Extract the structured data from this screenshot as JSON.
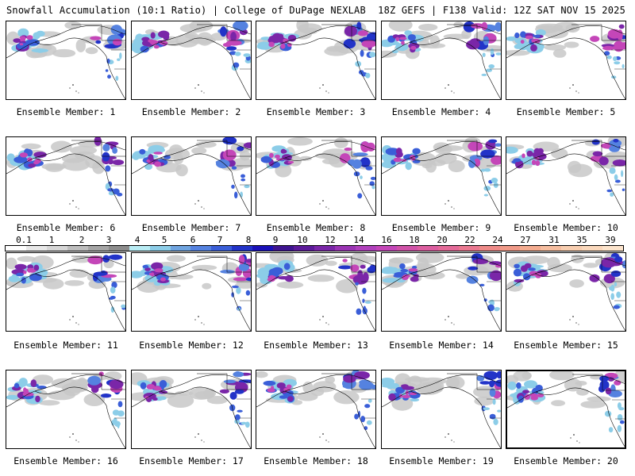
{
  "header": {
    "title": "Snowfall Accumulation (10:1 Ratio) | College of DuPage NEXLAB",
    "run_info": "18Z GEFS | F138 Valid: 12Z SAT NOV 15 2025"
  },
  "members": [
    {
      "caption": "Ensemble Member: 1"
    },
    {
      "caption": "Ensemble Member: 2"
    },
    {
      "caption": "Ensemble Member: 3"
    },
    {
      "caption": "Ensemble Member: 4"
    },
    {
      "caption": "Ensemble Member: 5"
    },
    {
      "caption": "Ensemble Member: 6"
    },
    {
      "caption": "Ensemble Member: 7"
    },
    {
      "caption": "Ensemble Member: 8"
    },
    {
      "caption": "Ensemble Member: 9"
    },
    {
      "caption": "Ensemble Member: 10"
    },
    {
      "caption": "Ensemble Member: 11"
    },
    {
      "caption": "Ensemble Member: 12"
    },
    {
      "caption": "Ensemble Member: 13"
    },
    {
      "caption": "Ensemble Member: 14"
    },
    {
      "caption": "Ensemble Member: 15"
    },
    {
      "caption": "Ensemble Member: 16"
    },
    {
      "caption": "Ensemble Member: 17"
    },
    {
      "caption": "Ensemble Member: 18"
    },
    {
      "caption": "Ensemble Member: 19"
    },
    {
      "caption": "Ensemble Member: 20"
    }
  ],
  "legend": {
    "labels": [
      "0.1",
      "1",
      "2",
      "3",
      "4",
      "5",
      "6",
      "7",
      "8",
      "9",
      "10",
      "12",
      "14",
      "16",
      "18",
      "20",
      "22",
      "24",
      "27",
      "31",
      "35",
      "39"
    ],
    "colors": [
      "#ffffff",
      "#e8e8e8",
      "#d6d6d6",
      "#bdbdbd",
      "#a5a5a5",
      "#8c8c8c",
      "#b8ecf4",
      "#8ccde8",
      "#6fa4e0",
      "#5582e0",
      "#3a5ed8",
      "#2233c8",
      "#1a10b8",
      "#3e1490",
      "#5c1a9a",
      "#7a26a8",
      "#9a34b4",
      "#b040bc",
      "#c446b8",
      "#d052a8",
      "#dc5ea0",
      "#e46a98",
      "#ea7890",
      "#ee8a88",
      "#f09a88",
      "#f4ac90",
      "#f6bea0",
      "#f8ceb0",
      "#fad8bc",
      "#fce4cc"
    ]
  }
}
